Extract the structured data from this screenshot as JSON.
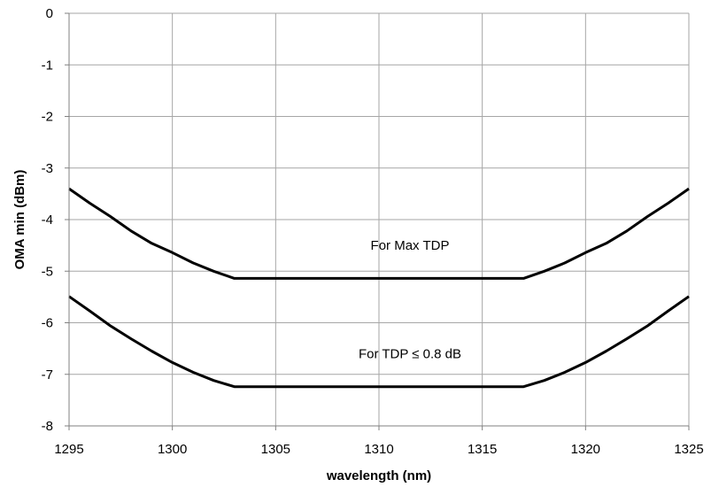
{
  "chart_data": {
    "type": "line",
    "title": "",
    "xlabel": "wavelength (nm)",
    "ylabel": "OMA min (dBm)",
    "xlim": [
      1295,
      1325
    ],
    "ylim": [
      -8,
      0
    ],
    "xticks": [
      1295,
      1300,
      1305,
      1310,
      1315,
      1320,
      1325
    ],
    "yticks": [
      0,
      -1,
      -2,
      -3,
      -4,
      -5,
      -6,
      -7,
      -8
    ],
    "grid": true,
    "legend": "none",
    "series": [
      {
        "x": [
          1295,
          1296,
          1297,
          1298,
          1299,
          1300,
          1301,
          1302,
          1303,
          1317,
          1318,
          1319,
          1320,
          1321,
          1322,
          1323,
          1324,
          1325
        ],
        "y": [
          -3.4,
          -3.68,
          -3.94,
          -4.22,
          -4.46,
          -4.64,
          -4.84,
          -5.0,
          -5.14,
          -5.14,
          -5.0,
          -4.84,
          -4.64,
          -4.46,
          -4.22,
          -3.94,
          -3.68,
          -3.4
        ]
      },
      {
        "x": [
          1295,
          1296,
          1297,
          1298,
          1299,
          1300,
          1301,
          1302,
          1303,
          1317,
          1318,
          1319,
          1320,
          1321,
          1322,
          1323,
          1324,
          1325
        ],
        "y": [
          -5.49,
          -5.77,
          -6.06,
          -6.31,
          -6.55,
          -6.77,
          -6.96,
          -7.12,
          -7.24,
          -7.24,
          -7.12,
          -6.96,
          -6.77,
          -6.55,
          -6.31,
          -6.06,
          -5.77,
          -5.49
        ]
      }
    ],
    "annotations": [
      {
        "text": "For Max TDP",
        "x": 1311.5,
        "y": -4.5
      },
      {
        "text": "For TDP ≤ 0.8 dB",
        "x": 1311.5,
        "y": -6.6
      }
    ]
  }
}
